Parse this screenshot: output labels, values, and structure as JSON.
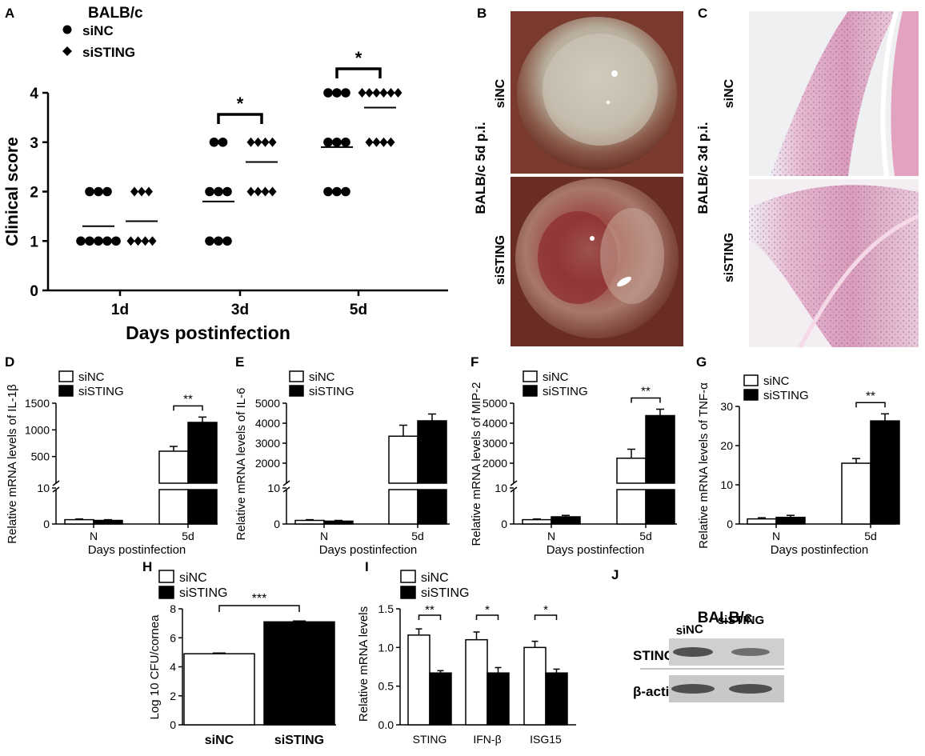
{
  "panels": {
    "A": "A",
    "B": "B",
    "C": "C",
    "D": "D",
    "E": "E",
    "F": "F",
    "G": "G",
    "H": "H",
    "I": "I",
    "J": "J"
  },
  "photos": {
    "B": {
      "side_label": "BALB/c 5d p.i.",
      "top_label": "siNC",
      "bottom_label": "siSTING"
    },
    "C": {
      "side_label": "BALB/c 3d p.i.",
      "top_label": "siNC",
      "bottom_label": "siSTING"
    }
  },
  "blot": {
    "title": "BALB/c",
    "lane_labels": [
      "siNC",
      "siSTING"
    ],
    "row_labels": [
      "STING",
      "β-actin"
    ]
  },
  "chart_data": [
    {
      "id": "A",
      "type": "scatter",
      "title": "BALB/c",
      "xlabel": "Days postinfection",
      "ylabel": "Clinical score",
      "ylim": [
        0,
        4
      ],
      "yticks": [
        "0",
        "1",
        "2",
        "3",
        "4"
      ],
      "categories": [
        "1d",
        "3d",
        "5d"
      ],
      "legend": [
        "siNC",
        "siSTING"
      ],
      "series": [
        {
          "name": "siNC",
          "marker": "circle",
          "points": [
            [
              1,
              1,
              1,
              1,
              1,
              2,
              2,
              2
            ],
            [
              1,
              1,
              1,
              2,
              2,
              2,
              3,
              3
            ],
            [
              2,
              2,
              2,
              3,
              3,
              3,
              4,
              4,
              4
            ]
          ],
          "means": [
            1.3,
            1.8,
            2.9
          ]
        },
        {
          "name": "siSTING",
          "marker": "diamond",
          "points": [
            [
              1,
              1,
              1,
              1,
              2,
              2,
              2
            ],
            [
              2,
              2,
              2,
              2,
              3,
              3,
              3,
              3
            ],
            [
              3,
              3,
              3,
              3,
              4,
              4,
              4,
              4,
              4,
              4
            ]
          ],
          "means": [
            1.4,
            2.6,
            3.7
          ]
        }
      ],
      "significance": [
        {
          "category": "3d",
          "label": "*"
        },
        {
          "category": "5d",
          "label": "*"
        }
      ]
    },
    {
      "id": "D",
      "type": "bar",
      "ylabel": "Relative mRNA levels of IL-1β",
      "xlabel": "Days postinfection",
      "categories": [
        "N",
        "5d"
      ],
      "legend": [
        "siNC",
        "siSTING"
      ],
      "axis_break": true,
      "lower_ticks": [
        "0",
        "10"
      ],
      "upper_ticks": [
        "500",
        "1000",
        "1500"
      ],
      "series": [
        {
          "name": "siNC",
          "values": [
            1.2,
            600
          ],
          "errors": [
            0.2,
            90
          ]
        },
        {
          "name": "siSTING",
          "values": [
            1.0,
            1140
          ],
          "errors": [
            0.2,
            100
          ]
        }
      ],
      "significance": [
        {
          "category": "5d",
          "label": "**"
        }
      ]
    },
    {
      "id": "E",
      "type": "bar",
      "ylabel": "Relative mRNA levels of IL-6",
      "xlabel": "Days postinfection",
      "categories": [
        "N",
        "5d"
      ],
      "legend": [
        "siNC",
        "siSTING"
      ],
      "axis_break": true,
      "lower_ticks": [
        "0",
        "10"
      ],
      "upper_ticks": [
        "2000",
        "3000",
        "4000",
        "5000"
      ],
      "series": [
        {
          "name": "siNC",
          "values": [
            1.0,
            3350
          ],
          "errors": [
            0.2,
            550
          ]
        },
        {
          "name": "siSTING",
          "values": [
            0.8,
            4120
          ],
          "errors": [
            0.2,
            340
          ]
        }
      ],
      "significance": []
    },
    {
      "id": "F",
      "type": "bar",
      "ylabel": "Relative mRNA levels of MIP-2",
      "xlabel": "Days postinfection",
      "categories": [
        "N",
        "5d"
      ],
      "legend": [
        "siNC",
        "siSTING"
      ],
      "axis_break": true,
      "lower_ticks": [
        "0",
        "10"
      ],
      "upper_ticks": [
        "2000",
        "3000",
        "4000",
        "5000"
      ],
      "series": [
        {
          "name": "siNC",
          "values": [
            1.2,
            2250
          ],
          "errors": [
            0.2,
            450
          ]
        },
        {
          "name": "siSTING",
          "values": [
            2.0,
            4380
          ],
          "errors": [
            0.4,
            320
          ]
        }
      ],
      "significance": [
        {
          "category": "5d",
          "label": "**"
        }
      ]
    },
    {
      "id": "G",
      "type": "bar",
      "ylabel": "Relative mRNA levels of TNF-α",
      "xlabel": "Days postinfection",
      "categories": [
        "N",
        "5d"
      ],
      "legend": [
        "siNC",
        "siSTING"
      ],
      "axis_break": false,
      "ylim": [
        0,
        30
      ],
      "yticks": [
        "0",
        "10",
        "20",
        "30"
      ],
      "series": [
        {
          "name": "siNC",
          "values": [
            1.3,
            15.5
          ],
          "errors": [
            0.3,
            1.2
          ]
        },
        {
          "name": "siSTING",
          "values": [
            1.7,
            26.3
          ],
          "errors": [
            0.5,
            1.8
          ]
        }
      ],
      "significance": [
        {
          "category": "5d",
          "label": "**"
        }
      ]
    },
    {
      "id": "H",
      "type": "bar",
      "ylabel": "Log 10 CFU/cornea",
      "categories": [
        "siNC",
        "siSTING"
      ],
      "legend": [
        "siNC",
        "siSTING"
      ],
      "ylim": [
        0,
        8
      ],
      "yticks": [
        "0",
        "2",
        "4",
        "6",
        "8"
      ],
      "values": [
        4.9,
        7.1
      ],
      "errors": [
        0.05,
        0.06
      ],
      "significance": [
        {
          "label": "***"
        }
      ]
    },
    {
      "id": "I",
      "type": "bar",
      "ylabel": "Relative mRNA levels",
      "categories": [
        "STING",
        "IFN-β",
        "ISG15"
      ],
      "legend": [
        "siNC",
        "siSTING"
      ],
      "ylim": [
        0,
        1.5
      ],
      "yticks": [
        "0.0",
        "0.5",
        "1.0",
        "1.5"
      ],
      "series": [
        {
          "name": "siNC",
          "values": [
            1.16,
            1.1,
            1.0
          ],
          "errors": [
            0.08,
            0.1,
            0.08
          ]
        },
        {
          "name": "siSTING",
          "values": [
            0.67,
            0.67,
            0.67
          ],
          "errors": [
            0.03,
            0.07,
            0.05
          ]
        }
      ],
      "significance": [
        {
          "category": "STING",
          "label": "**"
        },
        {
          "category": "IFN-β",
          "label": "*"
        },
        {
          "category": "ISG15",
          "label": "*"
        }
      ]
    }
  ]
}
